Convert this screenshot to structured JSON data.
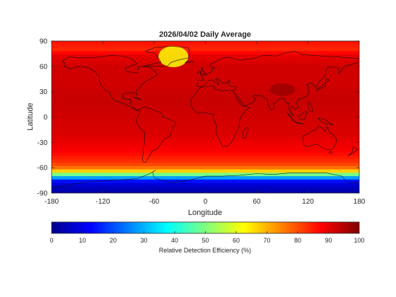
{
  "chart_data": {
    "type": "heatmap",
    "title": "2026/04/02 Daily Average",
    "xlabel": "Longitude",
    "ylabel": "Latitude",
    "xlim": [
      -180,
      180
    ],
    "ylim": [
      -90,
      90
    ],
    "xticks": [
      -180,
      -120,
      -60,
      0,
      60,
      120,
      180
    ],
    "yticks": [
      90,
      60,
      30,
      0,
      -30,
      -60,
      -90
    ],
    "colorbar": {
      "label": "Relative Detection Efficiency (%)",
      "ticks": [
        0,
        10,
        20,
        30,
        40,
        50,
        60,
        70,
        80,
        90,
        100
      ],
      "range": [
        0,
        100
      ],
      "colormap": "jet"
    },
    "grid": false,
    "basemap": "world coastlines",
    "zonal_profile": {
      "lat": [
        90,
        80,
        72,
        60,
        40,
        20,
        0,
        -20,
        -40,
        -55,
        -62,
        -66,
        -70,
        -74,
        -78,
        -84,
        -90
      ],
      "value": [
        86,
        84,
        90,
        92,
        92,
        93,
        92,
        91,
        88,
        82,
        74,
        60,
        38,
        18,
        10,
        6,
        4
      ]
    },
    "regions": [
      {
        "name": "Greenland",
        "lon": [
          -55,
          -20
        ],
        "lat": [
          59,
          84
        ],
        "value": 62
      },
      {
        "name": "Tibetan Plateau",
        "lon": [
          75,
          105
        ],
        "lat": [
          25,
          40
        ],
        "value": 97
      },
      {
        "name": "Antarctica",
        "lon": [
          -180,
          180
        ],
        "lat": [
          -90,
          -70
        ],
        "value": 5
      }
    ]
  }
}
